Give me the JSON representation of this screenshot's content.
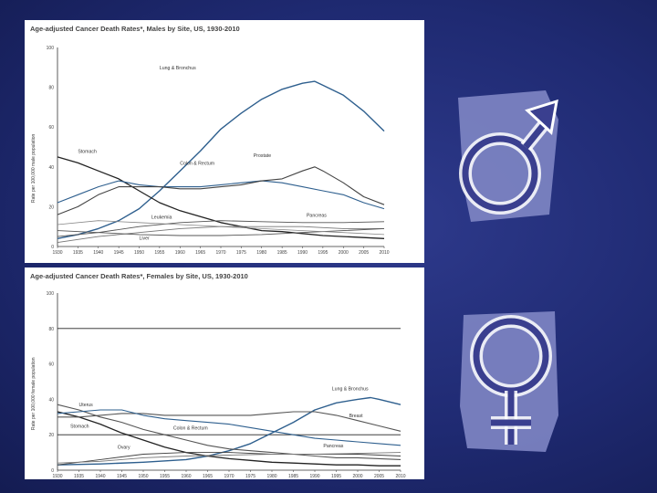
{
  "colors": {
    "background": "#1f2a72",
    "series": "#2e5f8e",
    "accent_dark": "#222222",
    "gray": "#666666",
    "symbol_fill": "#7f86c4"
  },
  "chart_data": [
    {
      "type": "line",
      "title": "Age-adjusted Cancer Death Rates*, Males by Site, US, 1930-2010",
      "ylabel": "Rate per 100,000 male population",
      "xlabel": "",
      "ylim": [
        0,
        100
      ],
      "xlim": [
        1930,
        2010
      ],
      "x_ticks": [
        1930,
        1935,
        1940,
        1945,
        1950,
        1955,
        1960,
        1965,
        1970,
        1975,
        1980,
        1985,
        1990,
        1995,
        2000,
        2005,
        2010
      ],
      "y_ticks": [
        0,
        20,
        40,
        60,
        80,
        100
      ],
      "grid": false,
      "series": [
        {
          "name": "Lung & Bronchus",
          "color": "#2e5f8e",
          "width": 1.4,
          "x": [
            1930,
            1935,
            1940,
            1945,
            1950,
            1955,
            1960,
            1965,
            1970,
            1975,
            1980,
            1985,
            1990,
            1993,
            1995,
            2000,
            2005,
            2010
          ],
          "y": [
            4,
            6,
            9,
            13,
            19,
            28,
            38,
            48,
            59,
            67,
            74,
            79,
            82,
            83,
            81,
            76,
            68,
            58
          ]
        },
        {
          "name": "Stomach",
          "color": "#222222",
          "width": 1.3,
          "x": [
            1930,
            1935,
            1940,
            1945,
            1950,
            1955,
            1960,
            1965,
            1970,
            1975,
            1980,
            1985,
            1990,
            1995,
            2000,
            2005,
            2010
          ],
          "y": [
            45,
            42,
            38,
            34,
            28,
            22,
            18,
            15,
            12,
            10,
            8,
            7.5,
            6.5,
            5.5,
            5,
            4.5,
            4
          ]
        },
        {
          "name": "Colon & Rectum",
          "color": "#2e5f8e",
          "width": 1.1,
          "x": [
            1930,
            1935,
            1940,
            1945,
            1950,
            1955,
            1960,
            1965,
            1970,
            1975,
            1980,
            1985,
            1990,
            1995,
            2000,
            2005,
            2010
          ],
          "y": [
            22,
            26,
            30,
            33,
            31,
            30,
            30,
            30,
            31,
            32,
            33,
            32,
            30,
            28,
            26,
            22,
            19
          ]
        },
        {
          "name": "Prostate",
          "color": "#444444",
          "width": 1.1,
          "x": [
            1930,
            1935,
            1940,
            1945,
            1950,
            1955,
            1960,
            1965,
            1970,
            1975,
            1980,
            1985,
            1990,
            1993,
            1995,
            2000,
            2005,
            2010
          ],
          "y": [
            16,
            20,
            26,
            30,
            30,
            30,
            29,
            29,
            30,
            31,
            33,
            34,
            38,
            40,
            38,
            32,
            25,
            21
          ]
        },
        {
          "name": "Pancreas",
          "color": "#555555",
          "width": 0.9,
          "x": [
            1930,
            1940,
            1950,
            1960,
            1970,
            1980,
            1990,
            2000,
            2010
          ],
          "y": [
            5,
            7,
            10,
            12,
            13,
            12.5,
            12,
            12,
            12.5
          ]
        },
        {
          "name": "Leukemia",
          "color": "#777777",
          "width": 0.9,
          "x": [
            1930,
            1940,
            1950,
            1960,
            1970,
            1980,
            1990,
            2000,
            2010
          ],
          "y": [
            2,
            5,
            7,
            9,
            10,
            10,
            10,
            9,
            9
          ]
        },
        {
          "name": "Liver",
          "color": "#555555",
          "width": 0.9,
          "x": [
            1930,
            1940,
            1950,
            1960,
            1970,
            1980,
            1990,
            2000,
            2010
          ],
          "y": [
            8,
            7,
            6,
            5.5,
            5.5,
            6,
            7,
            8,
            9
          ]
        },
        {
          "name": "",
          "color": "#888888",
          "width": 0.8,
          "x": [
            1930,
            1940,
            1950,
            1960,
            1970,
            1980,
            1990,
            2000,
            2010
          ],
          "y": [
            11,
            13,
            12,
            11,
            10,
            9,
            8,
            7,
            6
          ]
        }
      ],
      "labels": [
        {
          "text": "Lung & Bronchus",
          "x": 1955,
          "y": 89
        },
        {
          "text": "Stomach",
          "x": 1935,
          "y": 47
        },
        {
          "text": "Colon & Rectum",
          "x": 1960,
          "y": 41
        },
        {
          "text": "Prostate",
          "x": 1978,
          "y": 45
        },
        {
          "text": "Leukemia",
          "x": 1953,
          "y": 14
        },
        {
          "text": "Pancreas",
          "x": 1991,
          "y": 15
        },
        {
          "text": "Liver",
          "x": 1950,
          "y": 3.5
        }
      ]
    },
    {
      "type": "line",
      "title": "Age-adjusted Cancer Death Rates*, Females by Site, US, 1930-2010",
      "ylabel": "Rate per 100,000 female population",
      "xlabel": "",
      "ylim": [
        0,
        100
      ],
      "xlim": [
        1930,
        2010
      ],
      "x_ticks": [
        1930,
        1935,
        1940,
        1945,
        1950,
        1955,
        1960,
        1965,
        1970,
        1975,
        1980,
        1985,
        1990,
        1995,
        2000,
        2005,
        2010
      ],
      "y_ticks": [
        0,
        20,
        40,
        60,
        80,
        100
      ],
      "grid_y": [
        20,
        80
      ],
      "series": [
        {
          "name": "Lung & Bronchus",
          "color": "#2e5f8e",
          "width": 1.4,
          "x": [
            1930,
            1940,
            1950,
            1960,
            1965,
            1970,
            1975,
            1980,
            1985,
            1990,
            1995,
            2000,
            2003,
            2005,
            2010
          ],
          "y": [
            3,
            3.5,
            4.5,
            6,
            8,
            11,
            15,
            21,
            27,
            34,
            38,
            40,
            41,
            40,
            37
          ]
        },
        {
          "name": "Uterus",
          "color": "#555555",
          "width": 1.1,
          "x": [
            1930,
            1935,
            1940,
            1945,
            1950,
            1955,
            1960,
            1965,
            1970,
            1975,
            1980,
            1985,
            1990,
            1995,
            2000,
            2005,
            2010
          ],
          "y": [
            37,
            34,
            30,
            27,
            23,
            20,
            17,
            14,
            12,
            11,
            10,
            9,
            8,
            7,
            7,
            6.5,
            6
          ]
        },
        {
          "name": "Stomach",
          "color": "#222222",
          "width": 1.3,
          "x": [
            1930,
            1935,
            1940,
            1945,
            1950,
            1955,
            1960,
            1965,
            1970,
            1975,
            1980,
            1985,
            1990,
            1995,
            2000,
            2005,
            2010
          ],
          "y": [
            33,
            30,
            26,
            21,
            17,
            13,
            10,
            8,
            6.5,
            5.5,
            4.5,
            4,
            3.5,
            3,
            3,
            2.5,
            2.5
          ]
        },
        {
          "name": "Breast",
          "color": "#555555",
          "width": 1.1,
          "x": [
            1930,
            1935,
            1940,
            1945,
            1950,
            1955,
            1960,
            1965,
            1970,
            1975,
            1980,
            1985,
            1990,
            1995,
            2000,
            2005,
            2010
          ],
          "y": [
            30,
            30,
            31,
            32,
            32,
            31,
            31,
            31,
            31,
            31,
            32,
            33,
            33,
            31,
            28,
            25,
            22
          ]
        },
        {
          "name": "Colon & Rectum",
          "color": "#2e5f8e",
          "width": 1.1,
          "x": [
            1930,
            1935,
            1940,
            1945,
            1950,
            1955,
            1960,
            1965,
            1970,
            1975,
            1980,
            1985,
            1990,
            1995,
            2000,
            2005,
            2010
          ],
          "y": [
            32,
            33,
            34,
            34,
            31,
            29,
            28,
            27,
            26,
            24,
            22,
            20,
            18,
            17,
            16,
            15,
            14
          ]
        },
        {
          "name": "Ovary",
          "color": "#444444",
          "width": 0.9,
          "x": [
            1930,
            1940,
            1950,
            1960,
            1970,
            1980,
            1990,
            2000,
            2010
          ],
          "y": [
            3,
            6,
            9,
            10,
            10,
            9,
            9,
            9,
            8
          ]
        },
        {
          "name": "Pancreas",
          "color": "#777777",
          "width": 0.9,
          "x": [
            1930,
            1940,
            1950,
            1960,
            1970,
            1980,
            1990,
            2000,
            2010
          ],
          "y": [
            4,
            5,
            7,
            8,
            8.5,
            9,
            9,
            9.5,
            10
          ]
        }
      ],
      "labels": [
        {
          "text": "Lung & Bronchus",
          "x": 1994,
          "y": 45
        },
        {
          "text": "Uterus",
          "x": 1935,
          "y": 36
        },
        {
          "text": "Breast",
          "x": 1998,
          "y": 30
        },
        {
          "text": "Stomach",
          "x": 1933,
          "y": 24
        },
        {
          "text": "Colon & Rectum",
          "x": 1957,
          "y": 23
        },
        {
          "text": "Ovary",
          "x": 1944,
          "y": 12
        },
        {
          "text": "Pancreas",
          "x": 1992,
          "y": 13
        }
      ]
    }
  ]
}
